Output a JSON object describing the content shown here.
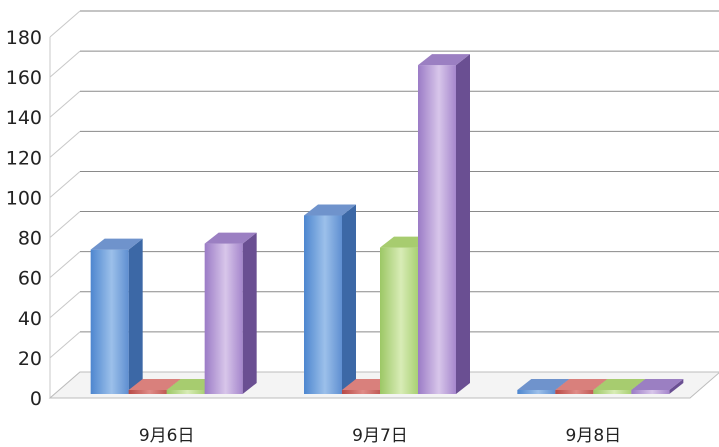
{
  "chart_data": {
    "type": "bar",
    "style": "3d-clustered-column",
    "categories": [
      "9月6日",
      "9月7日",
      "9月8日"
    ],
    "series": [
      {
        "values": [
          72,
          89,
          2
        ],
        "color_front": "#7ea6db",
        "color_side": "#3c68a6",
        "color_top": "#6f93cc"
      },
      {
        "values": [
          2,
          2,
          2
        ],
        "color_front": "#c4605c",
        "color_side": "#8e3b38",
        "color_top": "#d9807c"
      },
      {
        "values": [
          2,
          73,
          2
        ],
        "color_front": "#b9d98a",
        "color_side": "#7ea04a",
        "color_top": "#a7cc6f"
      },
      {
        "values": [
          75,
          164,
          2
        ],
        "color_front": "#b9a0d6",
        "color_side": "#6a4f92",
        "color_top": "#9b7fc2"
      }
    ],
    "ylim": [
      0,
      180
    ],
    "yticks": [
      0,
      20,
      40,
      60,
      80,
      100,
      120,
      140,
      160,
      180
    ],
    "grid": true,
    "legend": "none"
  }
}
